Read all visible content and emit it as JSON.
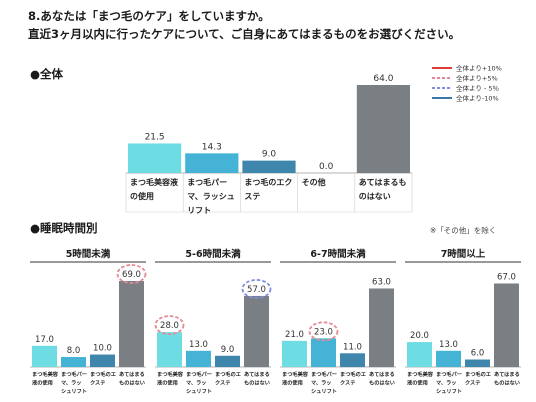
{
  "question": {
    "line1": "8.あなたは「まつ毛のケア」をしていますか。",
    "line2": "直近3ヶ月以内に行ったケアについて、ご自身にあてはまるものをお選びください。"
  },
  "sections": {
    "overall": "●全体",
    "sleep": "●睡眠時間別",
    "note": "※「その他」を除く"
  },
  "legend": [
    {
      "label": "全体より+10%",
      "color": "#e03c3c",
      "dashed": false
    },
    {
      "label": "全体より+5%",
      "color": "#e58a94",
      "dashed": true
    },
    {
      "label": "全体より - 5％",
      "color": "#7f8fe0",
      "dashed": true
    },
    {
      "label": "全体より-10%",
      "color": "#3a78a8",
      "dashed": false
    }
  ],
  "chart_data": [
    {
      "type": "bar",
      "title": "全体",
      "categories": [
        "まつ毛美容液の使用",
        "まつ毛パーマ、ラッシュリフト",
        "まつ毛のエクステ",
        "その他",
        "あてはまるものはない"
      ],
      "category_lines": [
        [
          "まつ毛美容液",
          "の使用"
        ],
        [
          "まつ毛パー",
          "マ、ラッシュ",
          "リフト"
        ],
        [
          "まつ毛のエク",
          "ステ"
        ],
        [
          "その他"
        ],
        [
          "あてはまるも",
          "のはない"
        ]
      ],
      "values": [
        21.5,
        14.3,
        9.0,
        0.0,
        64.0
      ],
      "labels": [
        "21.5",
        "14.3",
        "9.0",
        "0.0",
        "64.0"
      ],
      "colors": [
        "#6ddde3",
        "#45b3d6",
        "#3f86ad",
        "#3f86ad",
        "#7a7f84"
      ]
    },
    {
      "type": "bar",
      "title": "5時間未満",
      "categories": [
        "まつ毛美容液の使用",
        "まつ毛パーマ、ラッシュリフト",
        "まつ毛のエクステ",
        "あてはまるものはない"
      ],
      "category_lines": [
        [
          "まつ毛美容",
          "液の使用"
        ],
        [
          "まつ毛パー",
          "マ、ラッ",
          "シュリフト"
        ],
        [
          "まつ毛のエ",
          "クステ"
        ],
        [
          "あてはまる",
          "ものはない"
        ]
      ],
      "values": [
        17.0,
        8.0,
        10.0,
        69.0
      ],
      "labels": [
        "17.0",
        "8.0",
        "10.0",
        "69.0"
      ],
      "colors": [
        "#6ddde3",
        "#45b3d6",
        "#3f86ad",
        "#7a7f84"
      ],
      "highlight": [
        null,
        null,
        null,
        "plus5"
      ]
    },
    {
      "type": "bar",
      "title": "5-6時間未満",
      "categories": [
        "まつ毛美容液の使用",
        "まつ毛パーマ、ラッシュリフト",
        "まつ毛のエクステ",
        "あてはまるものはない"
      ],
      "category_lines": [
        [
          "まつ毛美容",
          "液の使用"
        ],
        [
          "まつ毛パー",
          "マ、ラッ",
          "シュリフト"
        ],
        [
          "まつ毛のエ",
          "クステ"
        ],
        [
          "あてはまる",
          "ものはない"
        ]
      ],
      "values": [
        28.0,
        13.0,
        9.0,
        57.0
      ],
      "labels": [
        "28.0",
        "13.0",
        "9.0",
        "57.0"
      ],
      "colors": [
        "#6ddde3",
        "#45b3d6",
        "#3f86ad",
        "#7a7f84"
      ],
      "highlight": [
        "plus5",
        null,
        null,
        "minus5"
      ]
    },
    {
      "type": "bar",
      "title": "6-7時間未満",
      "categories": [
        "まつ毛美容液の使用",
        "まつ毛パーマ、ラッシュリフト",
        "まつ毛のエクステ",
        "あてはまるものはない"
      ],
      "category_lines": [
        [
          "まつ毛美容",
          "液の使用"
        ],
        [
          "まつ毛パー",
          "マ、ラッ",
          "シュリフト"
        ],
        [
          "まつ毛のエ",
          "クステ"
        ],
        [
          "あてはまる",
          "ものはない"
        ]
      ],
      "values": [
        21.0,
        23.0,
        11.0,
        63.0
      ],
      "labels": [
        "21.0",
        "23.0",
        "11.0",
        "63.0"
      ],
      "colors": [
        "#6ddde3",
        "#45b3d6",
        "#3f86ad",
        "#7a7f84"
      ],
      "highlight": [
        null,
        "plus5",
        null,
        null
      ]
    },
    {
      "type": "bar",
      "title": "7時間以上",
      "categories": [
        "まつ毛美容液の使用",
        "まつ毛パーマ、ラッシュリフト",
        "まつ毛のエクステ",
        "あてはまるものはない"
      ],
      "category_lines": [
        [
          "まつ毛美容",
          "液の使用"
        ],
        [
          "まつ毛パー",
          "マ、ラッ",
          "シュリフト"
        ],
        [
          "まつ毛のエ",
          "クステ"
        ],
        [
          "あてはまる",
          "ものはない"
        ]
      ],
      "values": [
        20.0,
        13.0,
        6.0,
        67.0
      ],
      "labels": [
        "20.0",
        "13.0",
        "6.0",
        "67.0"
      ],
      "colors": [
        "#6ddde3",
        "#45b3d6",
        "#3f86ad",
        "#7a7f84"
      ],
      "highlight": [
        null,
        null,
        null,
        null
      ]
    }
  ]
}
